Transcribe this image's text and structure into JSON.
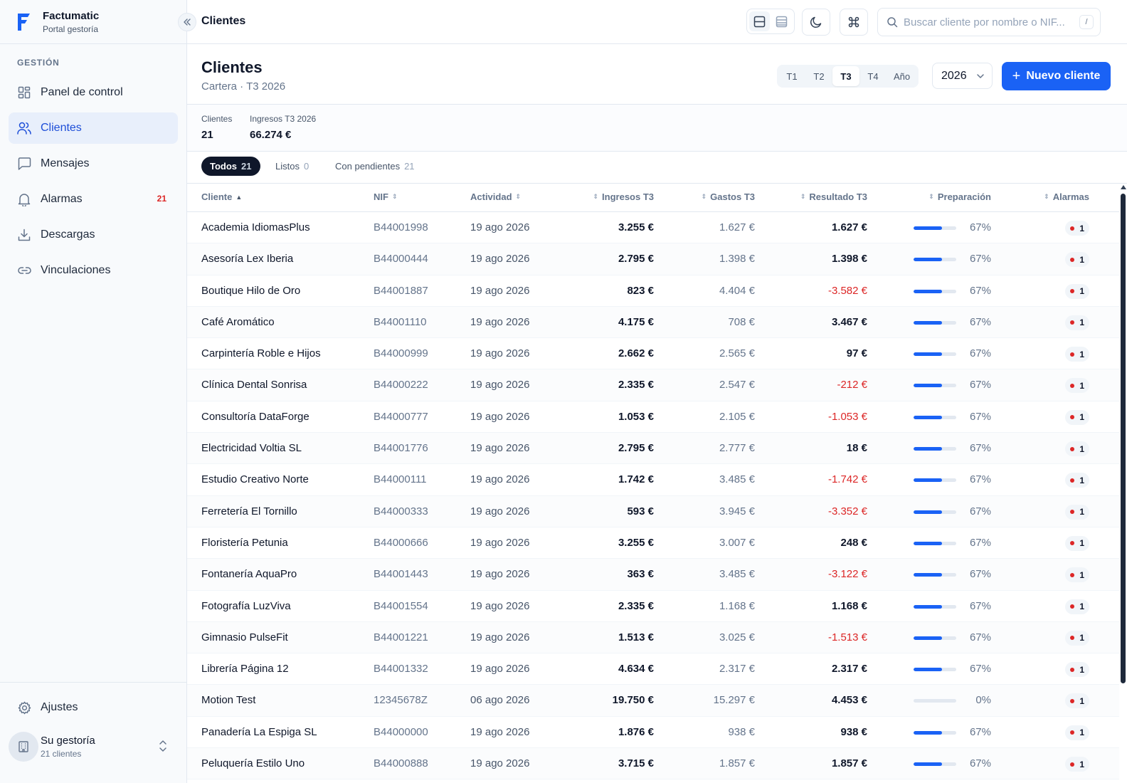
{
  "brand": {
    "name": "Factumatic",
    "subtitle": "Portal gestoría",
    "color": "#1a62f5"
  },
  "sidebar": {
    "section_label": "GESTIÓN",
    "items": [
      {
        "label": "Panel de control",
        "icon": "dashboard-icon",
        "active": false
      },
      {
        "label": "Clientes",
        "icon": "users-icon",
        "active": true
      },
      {
        "label": "Mensajes",
        "icon": "message-icon",
        "active": false
      },
      {
        "label": "Alarmas",
        "icon": "bell-icon",
        "active": false,
        "badge": "21"
      },
      {
        "label": "Descargas",
        "icon": "download-icon",
        "active": false
      },
      {
        "label": "Vinculaciones",
        "icon": "link-icon",
        "active": false
      }
    ],
    "settings_label": "Ajustes",
    "org": {
      "name": "Su gestoría",
      "sub": "21 clientes"
    }
  },
  "topbar": {
    "title": "Clientes",
    "search_placeholder": "Buscar cliente por nombre o NIF...",
    "search_shortcut": "/"
  },
  "page": {
    "title": "Clientes",
    "subtitle": "Cartera · T3 2026",
    "quarters": [
      "T1",
      "T2",
      "T3",
      "T4",
      "Año"
    ],
    "selected_quarter": "T3",
    "year": "2026",
    "new_button": "Nuevo cliente"
  },
  "stats": {
    "clients_label": "Clientes",
    "clients_value": "21",
    "income_label": "Ingresos T3 2026",
    "income_value": "66.274 €"
  },
  "filters": [
    {
      "label": "Todos",
      "count": "21",
      "active": true
    },
    {
      "label": "Listos",
      "count": "0",
      "active": false
    },
    {
      "label": "Con pendientes",
      "count": "21",
      "active": false
    }
  ],
  "table": {
    "columns": [
      "Cliente",
      "NIF",
      "Actividad",
      "Ingresos T3",
      "Gastos T3",
      "Resultado T3",
      "Preparación",
      "Alarmas"
    ],
    "rows": [
      {
        "name": "Academia IdiomasPlus",
        "nif": "B44001998",
        "activity": "19 ago 2026",
        "income": "3.255 €",
        "expenses": "1.627 €",
        "result": "1.627 €",
        "result_sign": "pos",
        "prep": 67,
        "prep_label": "67%",
        "alarms": "1"
      },
      {
        "name": "Asesoría Lex Iberia",
        "nif": "B44000444",
        "activity": "19 ago 2026",
        "income": "2.795 €",
        "expenses": "1.398 €",
        "result": "1.398 €",
        "result_sign": "pos",
        "prep": 67,
        "prep_label": "67%",
        "alarms": "1"
      },
      {
        "name": "Boutique Hilo de Oro",
        "nif": "B44001887",
        "activity": "19 ago 2026",
        "income": "823 €",
        "expenses": "4.404 €",
        "result": "-3.582 €",
        "result_sign": "neg",
        "prep": 67,
        "prep_label": "67%",
        "alarms": "1"
      },
      {
        "name": "Café Aromático",
        "nif": "B44001110",
        "activity": "19 ago 2026",
        "income": "4.175 €",
        "expenses": "708 €",
        "result": "3.467 €",
        "result_sign": "pos",
        "prep": 67,
        "prep_label": "67%",
        "alarms": "1"
      },
      {
        "name": "Carpintería Roble e Hijos",
        "nif": "B44000999",
        "activity": "19 ago 2026",
        "income": "2.662 €",
        "expenses": "2.565 €",
        "result": "97 €",
        "result_sign": "pos",
        "prep": 67,
        "prep_label": "67%",
        "alarms": "1"
      },
      {
        "name": "Clínica Dental Sonrisa",
        "nif": "B44000222",
        "activity": "19 ago 2026",
        "income": "2.335 €",
        "expenses": "2.547 €",
        "result": "-212 €",
        "result_sign": "neg",
        "prep": 67,
        "prep_label": "67%",
        "alarms": "1"
      },
      {
        "name": "Consultoría DataForge",
        "nif": "B44000777",
        "activity": "19 ago 2026",
        "income": "1.053 €",
        "expenses": "2.105 €",
        "result": "-1.053 €",
        "result_sign": "neg",
        "prep": 67,
        "prep_label": "67%",
        "alarms": "1"
      },
      {
        "name": "Electricidad Voltia SL",
        "nif": "B44001776",
        "activity": "19 ago 2026",
        "income": "2.795 €",
        "expenses": "2.777 €",
        "result": "18 €",
        "result_sign": "pos",
        "prep": 67,
        "prep_label": "67%",
        "alarms": "1"
      },
      {
        "name": "Estudio Creativo Norte",
        "nif": "B44000111",
        "activity": "19 ago 2026",
        "income": "1.742 €",
        "expenses": "3.485 €",
        "result": "-1.742 €",
        "result_sign": "neg",
        "prep": 67,
        "prep_label": "67%",
        "alarms": "1"
      },
      {
        "name": "Ferretería El Tornillo",
        "nif": "B44000333",
        "activity": "19 ago 2026",
        "income": "593 €",
        "expenses": "3.945 €",
        "result": "-3.352 €",
        "result_sign": "neg",
        "prep": 67,
        "prep_label": "67%",
        "alarms": "1"
      },
      {
        "name": "Floristería Petunia",
        "nif": "B44000666",
        "activity": "19 ago 2026",
        "income": "3.255 €",
        "expenses": "3.007 €",
        "result": "248 €",
        "result_sign": "pos",
        "prep": 67,
        "prep_label": "67%",
        "alarms": "1"
      },
      {
        "name": "Fontanería AquaPro",
        "nif": "B44001443",
        "activity": "19 ago 2026",
        "income": "363 €",
        "expenses": "3.485 €",
        "result": "-3.122 €",
        "result_sign": "neg",
        "prep": 67,
        "prep_label": "67%",
        "alarms": "1"
      },
      {
        "name": "Fotografía LuzViva",
        "nif": "B44001554",
        "activity": "19 ago 2026",
        "income": "2.335 €",
        "expenses": "1.168 €",
        "result": "1.168 €",
        "result_sign": "pos",
        "prep": 67,
        "prep_label": "67%",
        "alarms": "1"
      },
      {
        "name": "Gimnasio PulseFit",
        "nif": "B44001221",
        "activity": "19 ago 2026",
        "income": "1.513 €",
        "expenses": "3.025 €",
        "result": "-1.513 €",
        "result_sign": "neg",
        "prep": 67,
        "prep_label": "67%",
        "alarms": "1"
      },
      {
        "name": "Librería Página 12",
        "nif": "B44001332",
        "activity": "19 ago 2026",
        "income": "4.634 €",
        "expenses": "2.317 €",
        "result": "2.317 €",
        "result_sign": "pos",
        "prep": 67,
        "prep_label": "67%",
        "alarms": "1"
      },
      {
        "name": "Motion Test",
        "nif": "12345678Z",
        "activity": "06 ago 2026",
        "income": "19.750 €",
        "expenses": "15.297 €",
        "result": "4.453 €",
        "result_sign": "pos",
        "prep": 0,
        "prep_label": "0%",
        "alarms": "1"
      },
      {
        "name": "Panadería La Espiga SL",
        "nif": "B44000000",
        "activity": "19 ago 2026",
        "income": "1.876 €",
        "expenses": "938 €",
        "result": "938 €",
        "result_sign": "pos",
        "prep": 67,
        "prep_label": "67%",
        "alarms": "1"
      },
      {
        "name": "Peluquería Estilo Uno",
        "nif": "B44000888",
        "activity": "19 ago 2026",
        "income": "3.715 €",
        "expenses": "1.857 €",
        "result": "1.857 €",
        "result_sign": "pos",
        "prep": 67,
        "prep_label": "67%",
        "alarms": "1"
      }
    ]
  },
  "colors": {
    "accent": "#1a62f5",
    "negative": "#dc2626",
    "active_nav_bg": "#e8effb"
  }
}
